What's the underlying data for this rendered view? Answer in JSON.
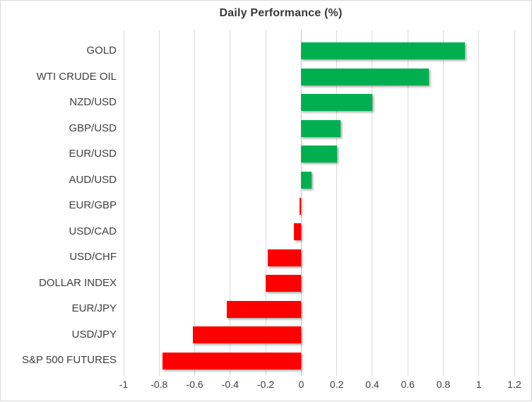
{
  "chart_data": {
    "type": "bar",
    "orientation": "horizontal",
    "title": "Daily Performance (%)",
    "categories": [
      "GOLD",
      "WTI CRUDE OIL",
      "NZD/USD",
      "GBP/USD",
      "EUR/USD",
      "AUD/USD",
      "EUR/GBP",
      "USD/CAD",
      "USD/CHF",
      "DOLLAR INDEX",
      "EUR/JPY",
      "USD/JPY",
      "S&P 500 FUTURES"
    ],
    "values": [
      0.92,
      0.72,
      0.4,
      0.22,
      0.2,
      0.06,
      -0.01,
      -0.04,
      -0.19,
      -0.2,
      -0.42,
      -0.61,
      -0.78
    ],
    "xlabel": "",
    "ylabel": "",
    "xlim": [
      -1,
      1.2
    ],
    "xticks": [
      -1,
      -0.8,
      -0.6,
      -0.4,
      -0.2,
      0,
      0.2,
      0.4,
      0.6,
      0.8,
      1,
      1.2
    ],
    "xtick_labels": [
      "-1",
      "-0.8",
      "-0.6",
      "-0.4",
      "-0.2",
      "0",
      "0.2",
      "0.4",
      "0.6",
      "0.8",
      "1",
      "1.2"
    ],
    "grid": true,
    "legend": false,
    "colors": {
      "positive": "#00B050",
      "negative": "#FF0000",
      "gridline": "#D9D9D9",
      "zero_line": "#C6C6C6",
      "label": "#3F3F3F",
      "title": "#383838",
      "border": "#D9D9D9"
    }
  }
}
